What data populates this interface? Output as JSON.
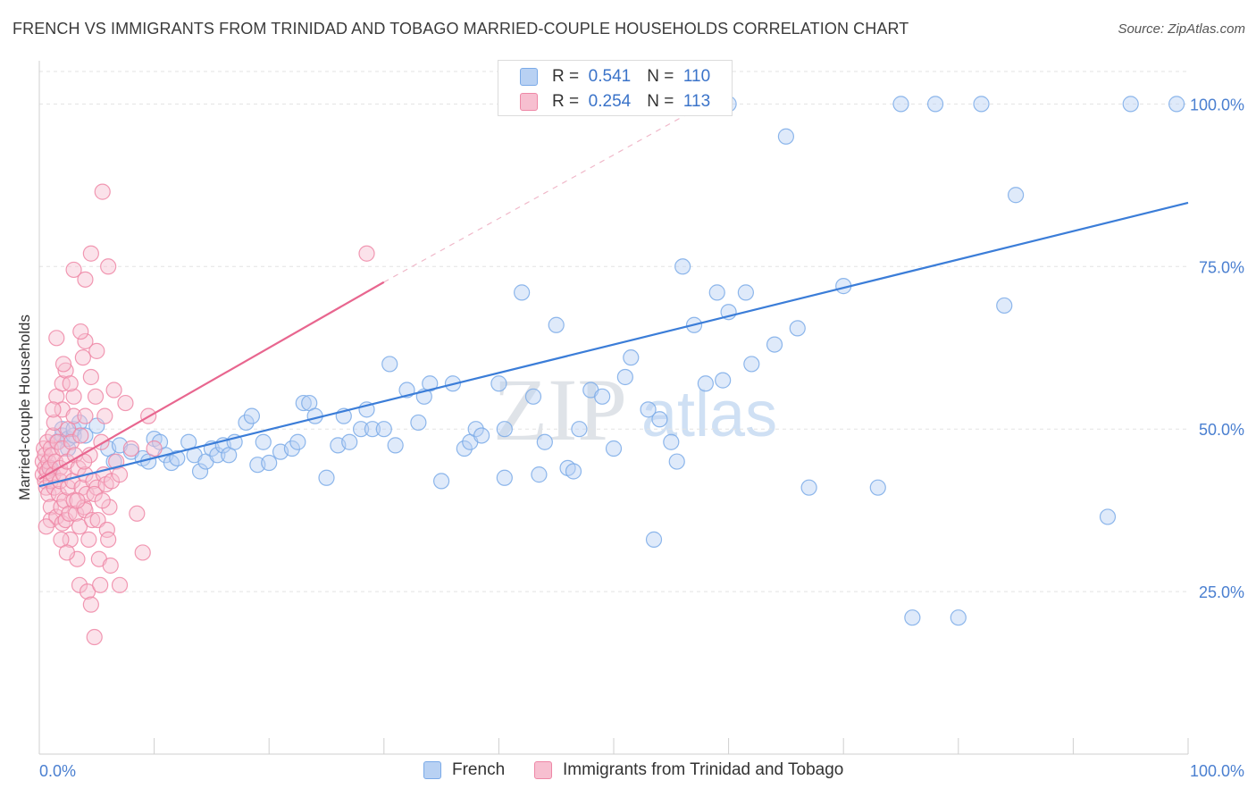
{
  "header": {
    "title": "FRENCH VS IMMIGRANTS FROM TRINIDAD AND TOBAGO MARRIED-COUPLE HOUSEHOLDS CORRELATION CHART",
    "source": "Source: ZipAtlas.com"
  },
  "watermark": {
    "zip": "ZIP",
    "atlas": "atlas"
  },
  "legend": {
    "r_label": "R =",
    "n_label": "N =",
    "series": [
      {
        "name": "French",
        "r": "0.541",
        "n": "110",
        "color": "#7aaae8",
        "fill": "#b8d1f3"
      },
      {
        "name": "Immigrants from Trinidad and Tobago",
        "r": "0.254",
        "n": "113",
        "color": "#ee87a6",
        "fill": "#f7bfd0"
      }
    ]
  },
  "chart_data": {
    "type": "scatter",
    "title": "FRENCH VS IMMIGRANTS FROM TRINIDAD AND TOBAGO MARRIED-COUPLE HOUSEHOLDS CORRELATION CHART",
    "xlabel": "",
    "ylabel": "Married-couple Households",
    "xlim": [
      0,
      100
    ],
    "ylim": [
      0,
      105
    ],
    "x_tick_labels": [
      "0.0%",
      "100.0%"
    ],
    "y_ticks": [
      25,
      50,
      75,
      100
    ],
    "y_tick_labels": [
      "25.0%",
      "50.0%",
      "75.0%",
      "100.0%"
    ],
    "grid": true,
    "series": [
      {
        "name": "French",
        "color": "#3b7dd8",
        "trend": {
          "x": [
            0,
            100
          ],
          "y": [
            41.2,
            84.8
          ]
        },
        "points": [
          [
            1,
            44
          ],
          [
            1.5,
            48
          ],
          [
            2,
            49
          ],
          [
            2,
            50
          ],
          [
            2.5,
            47
          ],
          [
            2.5,
            48.5
          ],
          [
            3,
            49
          ],
          [
            3,
            50
          ],
          [
            3.5,
            51
          ],
          [
            4,
            49
          ],
          [
            5,
            50.5
          ],
          [
            6,
            47
          ],
          [
            6.5,
            45
          ],
          [
            7,
            47.5
          ],
          [
            8,
            46.5
          ],
          [
            9,
            45.5
          ],
          [
            9.5,
            45
          ],
          [
            10,
            48.5
          ],
          [
            10.5,
            48
          ],
          [
            11,
            46
          ],
          [
            11.5,
            44.8
          ],
          [
            12,
            45.5
          ],
          [
            13,
            48
          ],
          [
            13.5,
            46
          ],
          [
            14,
            43.5
          ],
          [
            14.5,
            45
          ],
          [
            15,
            47
          ],
          [
            15.5,
            46
          ],
          [
            16,
            47.5
          ],
          [
            16.5,
            46
          ],
          [
            17,
            48
          ],
          [
            18,
            51
          ],
          [
            18.5,
            52
          ],
          [
            19,
            44.5
          ],
          [
            19.5,
            48
          ],
          [
            20,
            44.8
          ],
          [
            21,
            46.5
          ],
          [
            22,
            47
          ],
          [
            22.5,
            48
          ],
          [
            23,
            54
          ],
          [
            23.5,
            54
          ],
          [
            24,
            52
          ],
          [
            25,
            42.5
          ],
          [
            26,
            47.5
          ],
          [
            26.5,
            52
          ],
          [
            27,
            48
          ],
          [
            28,
            50
          ],
          [
            28.5,
            53
          ],
          [
            29,
            50
          ],
          [
            30,
            50
          ],
          [
            30.5,
            60
          ],
          [
            31,
            47.5
          ],
          [
            32,
            56
          ],
          [
            33,
            51
          ],
          [
            33.5,
            55
          ],
          [
            34,
            57
          ],
          [
            35,
            42
          ],
          [
            36,
            57
          ],
          [
            37,
            47
          ],
          [
            37.5,
            48
          ],
          [
            38,
            50
          ],
          [
            38.5,
            49
          ],
          [
            40,
            57
          ],
          [
            40.5,
            42.5
          ],
          [
            40.5,
            50
          ],
          [
            42,
            71
          ],
          [
            43,
            55
          ],
          [
            43.5,
            43
          ],
          [
            44,
            48
          ],
          [
            45,
            66
          ],
          [
            46,
            44
          ],
          [
            46.5,
            43.5
          ],
          [
            47,
            50
          ],
          [
            48,
            56
          ],
          [
            49,
            55
          ],
          [
            50,
            47
          ],
          [
            51,
            58
          ],
          [
            51.5,
            61
          ],
          [
            53,
            53
          ],
          [
            53.5,
            33
          ],
          [
            54,
            51.5
          ],
          [
            55,
            48
          ],
          [
            55.5,
            45
          ],
          [
            56,
            75
          ],
          [
            57,
            66
          ],
          [
            58,
            57
          ],
          [
            59,
            71
          ],
          [
            59.5,
            57.5
          ],
          [
            60,
            68
          ],
          [
            61.5,
            71
          ],
          [
            62,
            60
          ],
          [
            64,
            63
          ],
          [
            66,
            65.5
          ],
          [
            67,
            41
          ],
          [
            70,
            72
          ],
          [
            73,
            41
          ],
          [
            75,
            100
          ],
          [
            76,
            21
          ],
          [
            78,
            100
          ],
          [
            80,
            21
          ],
          [
            82,
            100
          ],
          [
            84,
            69
          ],
          [
            85,
            86
          ],
          [
            93,
            36.5
          ],
          [
            95,
            100
          ],
          [
            99,
            100
          ],
          [
            60,
            100
          ],
          [
            53.5,
            100
          ],
          [
            65,
            95
          ],
          [
            56,
            100
          ]
        ]
      },
      {
        "name": "Immigrants from Trinidad and Tobago",
        "color": "#e8668f",
        "trend": {
          "x": [
            0,
            30
          ],
          "y": [
            42.3,
            72.6
          ]
        },
        "trend_extension": {
          "x": [
            30,
            58
          ],
          "y": [
            72.6,
            100
          ]
        },
        "points": [
          [
            0.3,
            43
          ],
          [
            0.3,
            45
          ],
          [
            0.4,
            47
          ],
          [
            0.5,
            44
          ],
          [
            0.5,
            42
          ],
          [
            0.5,
            46
          ],
          [
            0.6,
            41
          ],
          [
            0.7,
            43.5
          ],
          [
            0.7,
            48
          ],
          [
            0.8,
            45
          ],
          [
            0.8,
            40
          ],
          [
            0.9,
            44
          ],
          [
            1,
            47
          ],
          [
            1,
            42
          ],
          [
            1,
            38
          ],
          [
            1,
            36
          ],
          [
            1.1,
            46
          ],
          [
            1.2,
            43
          ],
          [
            1.2,
            49
          ],
          [
            1.3,
            41
          ],
          [
            1.3,
            51
          ],
          [
            1.4,
            45
          ],
          [
            1.5,
            36.5
          ],
          [
            1.5,
            55
          ],
          [
            1.6,
            48
          ],
          [
            1.7,
            40
          ],
          [
            1.8,
            44
          ],
          [
            1.8,
            42
          ],
          [
            1.9,
            38
          ],
          [
            2,
            57
          ],
          [
            2,
            53
          ],
          [
            2,
            47
          ],
          [
            2,
            35.5
          ],
          [
            2.1,
            43
          ],
          [
            2.2,
            39
          ],
          [
            2.3,
            59
          ],
          [
            2.3,
            36
          ],
          [
            2.4,
            45
          ],
          [
            2.5,
            41
          ],
          [
            2.5,
            50
          ],
          [
            2.6,
            37
          ],
          [
            2.7,
            33
          ],
          [
            2.8,
            48
          ],
          [
            2.9,
            42
          ],
          [
            3,
            74.5
          ],
          [
            3,
            55
          ],
          [
            3,
            52
          ],
          [
            3,
            39
          ],
          [
            3.1,
            46
          ],
          [
            3.2,
            37
          ],
          [
            3.3,
            30
          ],
          [
            3.4,
            44
          ],
          [
            3.5,
            26
          ],
          [
            3.5,
            35
          ],
          [
            3.6,
            49
          ],
          [
            3.7,
            41
          ],
          [
            3.8,
            61
          ],
          [
            3.9,
            38
          ],
          [
            4,
            73
          ],
          [
            4,
            63.5
          ],
          [
            4,
            52
          ],
          [
            4,
            43
          ],
          [
            4,
            37.5
          ],
          [
            4.1,
            40
          ],
          [
            4.2,
            25
          ],
          [
            4.3,
            33
          ],
          [
            4.4,
            46
          ],
          [
            4.5,
            77
          ],
          [
            4.5,
            58
          ],
          [
            4.5,
            23
          ],
          [
            4.6,
            36
          ],
          [
            4.7,
            42
          ],
          [
            4.8,
            18
          ],
          [
            4.9,
            55
          ],
          [
            5,
            41
          ],
          [
            5,
            62
          ],
          [
            5.1,
            36
          ],
          [
            5.2,
            30
          ],
          [
            5.3,
            26
          ],
          [
            5.4,
            48
          ],
          [
            5.5,
            86.5
          ],
          [
            5.6,
            43
          ],
          [
            5.7,
            52
          ],
          [
            5.8,
            41.5
          ],
          [
            5.9,
            34.5
          ],
          [
            6,
            75
          ],
          [
            6,
            33
          ],
          [
            6.1,
            38
          ],
          [
            6.2,
            29
          ],
          [
            6.3,
            42
          ],
          [
            6.5,
            56
          ],
          [
            6.7,
            45
          ],
          [
            7,
            43
          ],
          [
            7,
            26
          ],
          [
            7.5,
            54
          ],
          [
            8,
            47
          ],
          [
            8.5,
            37
          ],
          [
            9,
            31
          ],
          [
            9.5,
            52
          ],
          [
            10,
            47
          ],
          [
            1.5,
            64
          ],
          [
            2.7,
            57
          ],
          [
            3.6,
            65
          ],
          [
            1.2,
            53
          ],
          [
            2.1,
            60
          ],
          [
            28.5,
            77
          ],
          [
            0.6,
            35
          ],
          [
            1.9,
            33
          ],
          [
            2.4,
            31
          ],
          [
            3.3,
            39
          ],
          [
            3.9,
            45
          ],
          [
            4.8,
            40
          ],
          [
            5.5,
            39
          ]
        ]
      }
    ]
  }
}
